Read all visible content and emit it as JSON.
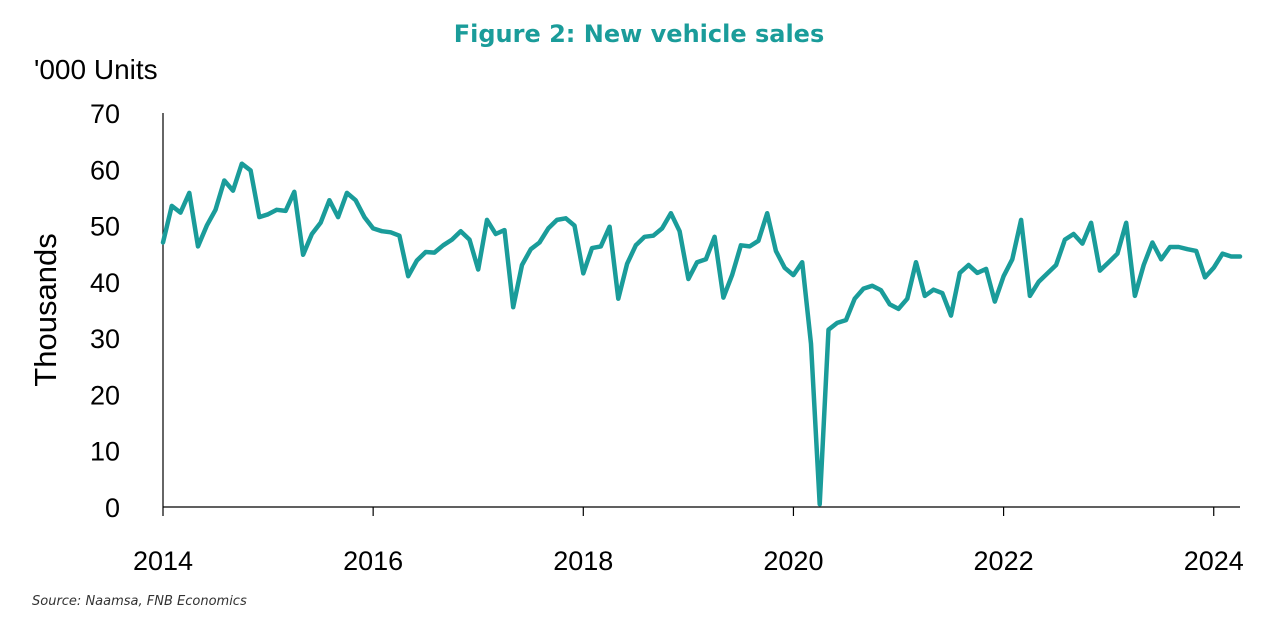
{
  "title": "Figure 2: New vehicle sales",
  "unit_label": "'000 Units",
  "source": "Source: Naamsa, FNB Economics",
  "colors": {
    "line": "#1a9c9a",
    "title": "#1a9c9a",
    "axis": "#000000"
  },
  "chart_data": {
    "type": "line",
    "title": "Figure 2: New vehicle sales",
    "xlabel": "",
    "ylabel": "Thousands",
    "xlim": [
      "2014-01",
      "2024-04"
    ],
    "ylim": [
      0,
      70
    ],
    "yticks": [
      0,
      10,
      20,
      30,
      40,
      50,
      60,
      70
    ],
    "xticks": [
      "2014",
      "2016",
      "2018",
      "2020",
      "2022",
      "2024"
    ],
    "grid": false,
    "legend": "none",
    "series": [
      {
        "x": [
          "2014-01",
          "2014-02",
          "2014-03",
          "2014-04",
          "2014-05",
          "2014-06",
          "2014-07",
          "2014-08",
          "2014-09",
          "2014-10",
          "2014-11",
          "2014-12",
          "2015-01",
          "2015-02",
          "2015-03",
          "2015-04",
          "2015-05",
          "2015-06",
          "2015-07",
          "2015-08",
          "2015-09",
          "2015-10",
          "2015-11",
          "2015-12",
          "2016-01",
          "2016-02",
          "2016-03",
          "2016-04",
          "2016-05",
          "2016-06",
          "2016-07",
          "2016-08",
          "2016-09",
          "2016-10",
          "2016-11",
          "2016-12",
          "2017-01",
          "2017-02",
          "2017-03",
          "2017-04",
          "2017-05",
          "2017-06",
          "2017-07",
          "2017-08",
          "2017-09",
          "2017-10",
          "2017-11",
          "2017-12",
          "2018-01",
          "2018-02",
          "2018-03",
          "2018-04",
          "2018-05",
          "2018-06",
          "2018-07",
          "2018-08",
          "2018-09",
          "2018-10",
          "2018-11",
          "2018-12",
          "2019-01",
          "2019-02",
          "2019-03",
          "2019-04",
          "2019-05",
          "2019-06",
          "2019-07",
          "2019-08",
          "2019-09",
          "2019-10",
          "2019-11",
          "2019-12",
          "2020-01",
          "2020-02",
          "2020-03",
          "2020-04",
          "2020-05",
          "2020-06",
          "2020-07",
          "2020-08",
          "2020-09",
          "2020-10",
          "2020-11",
          "2020-12",
          "2021-01",
          "2021-02",
          "2021-03",
          "2021-04",
          "2021-05",
          "2021-06",
          "2021-07",
          "2021-08",
          "2021-09",
          "2021-10",
          "2021-11",
          "2021-12",
          "2022-01",
          "2022-02",
          "2022-03",
          "2022-04",
          "2022-05",
          "2022-06",
          "2022-07",
          "2022-08",
          "2022-09",
          "2022-10",
          "2022-11",
          "2022-12",
          "2023-01",
          "2023-02",
          "2023-03",
          "2023-04",
          "2023-05",
          "2023-06",
          "2023-07",
          "2023-08",
          "2023-09",
          "2023-10",
          "2023-11",
          "2023-12",
          "2024-01",
          "2024-02",
          "2024-03",
          "2024-04"
        ],
        "values": [
          47.0,
          53.5,
          52.3,
          55.8,
          46.3,
          50.0,
          52.8,
          58.0,
          56.2,
          61.0,
          59.8,
          51.5,
          52.0,
          52.8,
          52.6,
          56.0,
          44.8,
          48.5,
          50.5,
          54.5,
          51.5,
          55.8,
          54.5,
          51.5,
          49.5,
          49.0,
          48.8,
          48.2,
          41.0,
          43.8,
          45.3,
          45.2,
          46.5,
          47.5,
          49.0,
          47.5,
          42.2,
          51.0,
          48.5,
          49.2,
          35.5,
          43.0,
          45.8,
          47.0,
          49.5,
          51.0,
          51.3,
          50.0,
          41.5,
          46.0,
          46.3,
          49.8,
          37.0,
          43.2,
          46.5,
          48.0,
          48.2,
          49.5,
          52.2,
          49.0,
          40.5,
          43.5,
          44.0,
          48.0,
          37.2,
          41.2,
          46.5,
          46.3,
          47.3,
          52.2,
          45.5,
          42.5,
          41.2,
          43.5,
          29.0,
          0.5,
          31.5,
          32.7,
          33.2,
          37.0,
          38.8,
          39.3,
          38.5,
          36.0,
          35.2,
          37.0,
          43.5,
          37.5,
          38.6,
          38.0,
          34.0,
          41.6,
          43.0,
          41.6,
          42.3,
          36.5,
          41.0,
          44.0,
          51.0,
          37.5,
          40.0,
          41.5,
          43.0,
          47.5,
          48.5,
          46.8,
          50.5,
          42.0,
          43.5,
          45.0,
          50.5,
          37.5,
          43.0,
          47.0,
          44.0,
          46.2,
          46.2,
          45.8,
          45.5,
          40.8,
          42.5,
          45.0,
          44.5,
          44.5
        ]
      }
    ]
  }
}
